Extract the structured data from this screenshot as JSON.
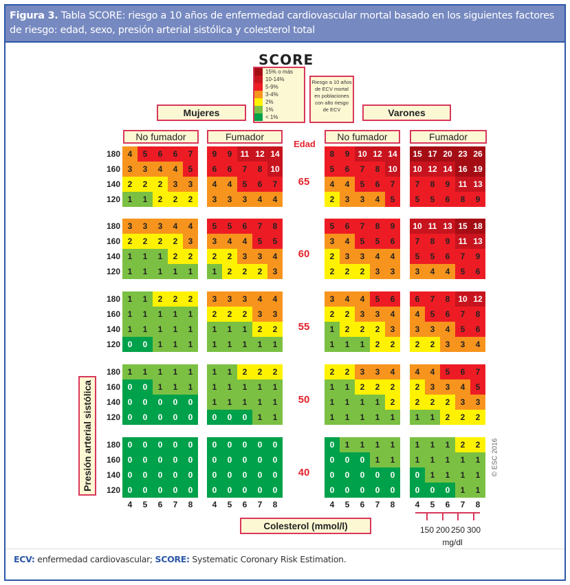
{
  "header": {
    "figure_label": "Figura 3.",
    "title": "Tabla SCORE: riesgo a 10 años de enfermedad cardiovascular mortal basado en los siguientes factores de riesgo: edad, sexo, presión arterial sistólica y colesterol total"
  },
  "logo": "SCORE",
  "legend": [
    {
      "label": "15% o más",
      "color": "#a50d15"
    },
    {
      "label": "10-14%",
      "color": "#c8141e"
    },
    {
      "label": "5-9%",
      "color": "#ed1c24"
    },
    {
      "label": "3-4%",
      "color": "#f7941d"
    },
    {
      "label": "2%",
      "color": "#fff200"
    },
    {
      "label": "1%",
      "color": "#7bc043"
    },
    {
      "label": "< 1%",
      "color": "#00a14b"
    }
  ],
  "riesgo_note": "Riesgo a 10 años de ECV mortal en poblaciones con alto riesgo de ECV",
  "sex_labels": {
    "women": "Mujeres",
    "men": "Varones"
  },
  "smoking_labels": {
    "non_smoker": "No fumador",
    "smoker": "Fumador"
  },
  "age_header": "Edad",
  "y_axis_label": "Presión arterial sistólica",
  "x_axis_label": "Colesterol (mmol/l)",
  "mgdl": {
    "labels": [
      "150",
      "200",
      "250",
      "300"
    ],
    "unit": "mg/dl"
  },
  "copyright": "© ESC 2016",
  "footer": {
    "ecv_abbr": "ECV:",
    "ecv_text": " enfermedad cardiovascular; ",
    "score_abbr": "SCORE:",
    "score_text": " Systematic Coronary Risk Estimation."
  },
  "chart_data": {
    "type": "heatmap",
    "cholesterol_ticks": [
      "4",
      "5",
      "6",
      "7",
      "8"
    ],
    "sbp_ticks": [
      "180",
      "160",
      "140",
      "120"
    ],
    "groups": [
      {
        "age": "65",
        "women_non_smoker": [
          [
            4,
            5,
            6,
            6,
            7
          ],
          [
            3,
            3,
            4,
            4,
            5
          ],
          [
            2,
            2,
            2,
            3,
            3
          ],
          [
            1,
            1,
            2,
            2,
            2
          ]
        ],
        "women_smoker": [
          [
            9,
            9,
            11,
            12,
            14
          ],
          [
            6,
            6,
            7,
            8,
            10
          ],
          [
            4,
            4,
            5,
            6,
            7
          ],
          [
            3,
            3,
            3,
            4,
            4
          ]
        ],
        "men_non_smoker": [
          [
            8,
            9,
            10,
            12,
            14
          ],
          [
            5,
            6,
            7,
            8,
            10
          ],
          [
            4,
            4,
            5,
            6,
            7
          ],
          [
            2,
            3,
            3,
            4,
            5
          ]
        ],
        "men_smoker": [
          [
            15,
            17,
            20,
            23,
            26
          ],
          [
            10,
            12,
            14,
            16,
            19
          ],
          [
            7,
            8,
            9,
            11,
            13
          ],
          [
            5,
            5,
            6,
            8,
            9
          ]
        ]
      },
      {
        "age": "60",
        "women_non_smoker": [
          [
            3,
            3,
            3,
            4,
            4
          ],
          [
            2,
            2,
            2,
            2,
            3
          ],
          [
            1,
            1,
            1,
            2,
            2
          ],
          [
            1,
            1,
            1,
            1,
            1
          ]
        ],
        "women_smoker": [
          [
            5,
            5,
            6,
            7,
            8
          ],
          [
            3,
            4,
            4,
            5,
            5
          ],
          [
            2,
            2,
            3,
            3,
            4
          ],
          [
            1,
            2,
            2,
            2,
            3
          ]
        ],
        "men_non_smoker": [
          [
            5,
            6,
            7,
            8,
            9
          ],
          [
            3,
            4,
            5,
            5,
            6
          ],
          [
            2,
            3,
            3,
            4,
            4
          ],
          [
            2,
            2,
            2,
            3,
            3
          ]
        ],
        "men_smoker": [
          [
            10,
            11,
            13,
            15,
            18
          ],
          [
            7,
            8,
            9,
            11,
            13
          ],
          [
            5,
            5,
            6,
            7,
            9
          ],
          [
            3,
            4,
            4,
            5,
            6
          ]
        ]
      },
      {
        "age": "55",
        "women_non_smoker": [
          [
            1,
            1,
            2,
            2,
            2
          ],
          [
            1,
            1,
            1,
            1,
            1
          ],
          [
            1,
            1,
            1,
            1,
            1
          ],
          [
            0,
            0,
            1,
            1,
            1
          ]
        ],
        "women_smoker": [
          [
            3,
            3,
            3,
            4,
            4
          ],
          [
            2,
            2,
            2,
            3,
            3
          ],
          [
            1,
            1,
            1,
            2,
            2
          ],
          [
            1,
            1,
            1,
            1,
            1
          ]
        ],
        "men_non_smoker": [
          [
            3,
            4,
            4,
            5,
            6
          ],
          [
            2,
            2,
            3,
            3,
            4
          ],
          [
            1,
            2,
            2,
            2,
            3
          ],
          [
            1,
            1,
            1,
            2,
            2
          ]
        ],
        "men_smoker": [
          [
            6,
            7,
            8,
            10,
            12
          ],
          [
            4,
            5,
            6,
            7,
            8
          ],
          [
            3,
            3,
            4,
            5,
            6
          ],
          [
            2,
            2,
            3,
            3,
            4
          ]
        ]
      },
      {
        "age": "50",
        "women_non_smoker": [
          [
            1,
            1,
            1,
            1,
            1
          ],
          [
            0,
            0,
            1,
            1,
            1
          ],
          [
            0,
            0,
            0,
            0,
            0
          ],
          [
            0,
            0,
            0,
            0,
            0
          ]
        ],
        "women_smoker": [
          [
            1,
            1,
            2,
            2,
            2
          ],
          [
            1,
            1,
            1,
            1,
            1
          ],
          [
            1,
            1,
            1,
            1,
            1
          ],
          [
            0,
            0,
            0,
            1,
            1
          ]
        ],
        "men_non_smoker": [
          [
            2,
            2,
            3,
            3,
            4
          ],
          [
            1,
            1,
            2,
            2,
            2
          ],
          [
            1,
            1,
            1,
            1,
            2
          ],
          [
            1,
            1,
            1,
            1,
            1
          ]
        ],
        "men_smoker": [
          [
            4,
            4,
            5,
            6,
            7
          ],
          [
            2,
            3,
            3,
            4,
            5
          ],
          [
            2,
            2,
            2,
            3,
            3
          ],
          [
            1,
            1,
            2,
            2,
            2
          ]
        ]
      },
      {
        "age": "40",
        "women_non_smoker": [
          [
            0,
            0,
            0,
            0,
            0
          ],
          [
            0,
            0,
            0,
            0,
            0
          ],
          [
            0,
            0,
            0,
            0,
            0
          ],
          [
            0,
            0,
            0,
            0,
            0
          ]
        ],
        "women_smoker": [
          [
            0,
            0,
            0,
            0,
            0
          ],
          [
            0,
            0,
            0,
            0,
            0
          ],
          [
            0,
            0,
            0,
            0,
            0
          ],
          [
            0,
            0,
            0,
            0,
            0
          ]
        ],
        "men_non_smoker": [
          [
            0,
            1,
            1,
            1,
            1
          ],
          [
            0,
            0,
            0,
            1,
            1
          ],
          [
            0,
            0,
            0,
            0,
            0
          ],
          [
            0,
            0,
            0,
            0,
            0
          ]
        ],
        "men_smoker": [
          [
            1,
            1,
            1,
            2,
            2
          ],
          [
            1,
            1,
            1,
            1,
            1
          ],
          [
            0,
            1,
            1,
            1,
            1
          ],
          [
            0,
            0,
            0,
            1,
            1
          ]
        ]
      }
    ]
  }
}
